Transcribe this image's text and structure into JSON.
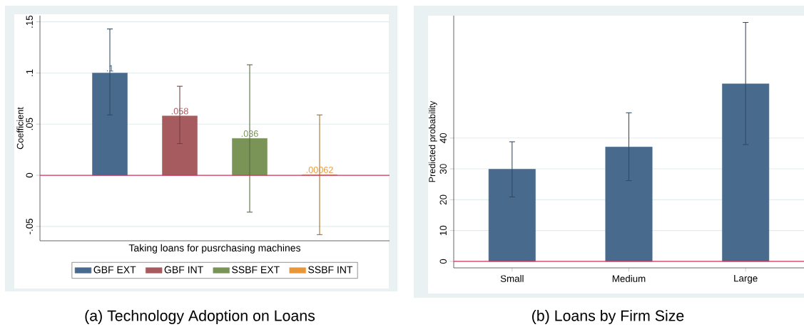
{
  "chart_data": [
    {
      "type": "bar",
      "title": "(a) Technology Adoption on Loans",
      "xlabel": "Taking loans for pusrchasing machines",
      "ylabel": "Coefficient",
      "categories": [
        null
      ],
      "series": [
        {
          "name": "GBF EXT",
          "color": "#476a8d",
          "values": [
            0.1
          ],
          "errors": [
            [
              0.059,
              0.143
            ]
          ],
          "value_labels": [
            ".1"
          ]
        },
        {
          "name": "GBF INT",
          "color": "#a65b5e",
          "values": [
            0.058
          ],
          "errors": [
            [
              0.031,
              0.087
            ]
          ],
          "value_labels": [
            ".058"
          ]
        },
        {
          "name": "SSBF EXT",
          "color": "#7a9457",
          "values": [
            0.036
          ],
          "errors": [
            [
              -0.036,
              0.108
            ]
          ],
          "value_labels": [
            ".036"
          ]
        },
        {
          "name": "SSBF INT",
          "color": "#e8983a",
          "values": [
            0.00062
          ],
          "errors": [
            [
              -0.058,
              0.059
            ]
          ],
          "value_labels": [
            ".00062"
          ]
        }
      ],
      "ylim": [
        -0.064,
        0.156
      ],
      "yticks": [
        {
          "value": -0.05,
          "label": "-.05"
        },
        0,
        {
          "value": 0.05,
          "label": ".05"
        },
        {
          "value": 0.1,
          "label": ".1"
        },
        {
          "value": 0.15,
          "label": ".15"
        }
      ],
      "ref_lines": [
        {
          "axis": "y",
          "value": 0,
          "color": "#d0365e"
        }
      ],
      "grid": "y",
      "legend": "bottom"
    },
    {
      "type": "bar",
      "title": "(b) Loans by Firm Size",
      "ylabel": "Predicted probability",
      "categories": [
        "Small",
        "Medium",
        "Large"
      ],
      "series": [
        {
          "color": "#476a8d",
          "values": [
            29.9,
            37.1,
            57.6
          ],
          "errors": [
            [
              20.9,
              38.8
            ],
            [
              26.2,
              48.2
            ],
            [
              37.9,
              77.5
            ]
          ]
        }
      ],
      "ylim": [
        -2.1,
        79.7
      ],
      "yticks": [
        0,
        10,
        20,
        30,
        40
      ],
      "ref_lines": [
        {
          "axis": "y",
          "value": 0,
          "color": "#d0365e"
        }
      ],
      "grid": "y"
    }
  ]
}
